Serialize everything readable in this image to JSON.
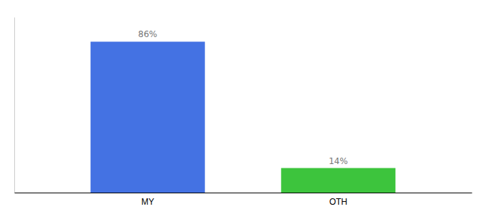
{
  "chart_data": {
    "type": "bar",
    "categories": [
      "MY",
      "OTH"
    ],
    "values": [
      86,
      14
    ],
    "value_labels": [
      "86%",
      "14%"
    ],
    "colors": [
      "#4472E3",
      "#3DC43D"
    ],
    "ylim": [
      0,
      100
    ],
    "tick_labels": "x"
  }
}
